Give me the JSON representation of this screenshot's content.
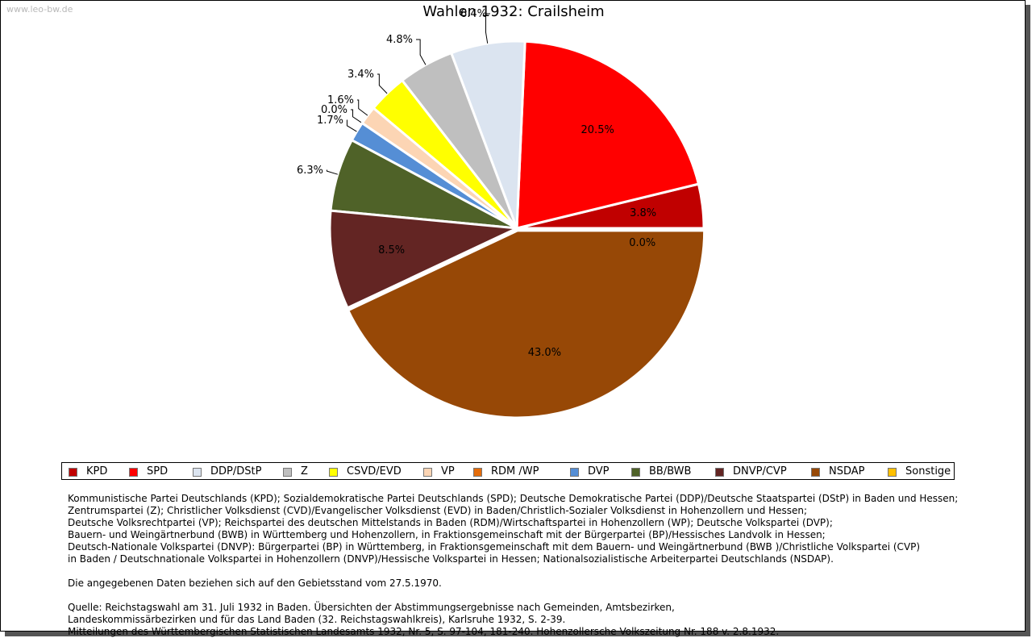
{
  "watermark": "www.leo-bw.de",
  "chart_data": {
    "type": "pie",
    "title": "Wahlen 1932: Crailsheim",
    "slices": [
      {
        "name": "KPD",
        "value": 3.8,
        "label": "3.8%",
        "color": "#c00000"
      },
      {
        "name": "SPD",
        "value": 20.5,
        "label": "20.5%",
        "color": "#ff0000"
      },
      {
        "name": "DDP/DStP",
        "value": 6.4,
        "label": "6.4%",
        "color": "#dbe4f0"
      },
      {
        "name": "Z",
        "value": 4.8,
        "label": "4.8%",
        "color": "#bfbfbf"
      },
      {
        "name": "CSVD/EVD",
        "value": 3.4,
        "label": "3.4%",
        "color": "#ffff00"
      },
      {
        "name": "VP",
        "value": 1.6,
        "label": "1.6%",
        "color": "#fcd5b4"
      },
      {
        "name": "RDM /WP",
        "value": 0.0,
        "label": "0.0%",
        "color": "#e46c0a"
      },
      {
        "name": "DVP",
        "value": 1.7,
        "label": "1.7%",
        "color": "#558ed5"
      },
      {
        "name": "BB/BWB",
        "value": 6.3,
        "label": "6.3%",
        "color": "#4f6228"
      },
      {
        "name": "DNVP/CVP",
        "value": 8.5,
        "label": "8.5%",
        "color": "#632523"
      },
      {
        "name": "NSDAP",
        "value": 43.0,
        "label": "43.0%",
        "color": "#974806"
      },
      {
        "name": "Sonstige",
        "value": 0.0,
        "label": "0.0%",
        "color": "#ffc000"
      }
    ],
    "legend_position": "bottom"
  },
  "notes": {
    "parties": [
      "Kommunistische Partei Deutschlands (KPD); Sozialdemokratische Partei Deutschlands (SPD); Deutsche Demokratische Partei (DDP)/Deutsche Staatspartei (DStP) in Baden und Hessen;",
      "Zentrumspartei (Z); Christlicher Volksdienst (CVD)/Evangelischer Volksdienst (EVD) in Baden/Christlich-Sozialer Volksdienst in Hohenzollern und Hessen;",
      "Deutsche Volksrechtpartei (VP); Reichspartei des deutschen Mittelstands in Baden (RDM)/Wirtschaftspartei in Hohenzollern (WP); Deutsche Volkspartei (DVP);",
      "Bauern- und Weingärtnerbund (BWB) in Württemberg und Hohenzollern, in Fraktionsgemeinschaft mit der Bürgerpartei (BP)/Hessisches Landvolk in Hessen;",
      "Deutsch-Nationale Volkspartei (DNVP): Bürgerpartei (BP) in Württemberg, in Fraktionsgemeinschaft mit dem Bauern- und Weingärtnerbund (BWB )/Christliche Volkspartei (CVP)",
      "in Baden / Deutschnationale Volkspartei in Hohenzollern (DNVP)/Hessische Volkspartei in Hessen; Nationalsozialistische Arbeiterpartei Deutschlands (NSDAP)."
    ],
    "gebietsstand": "Die angegebenen Daten beziehen sich auf den Gebietsstand vom 27.5.1970.",
    "quelle": [
      "Quelle: Reichstagswahl am 31. Juli 1932 in Baden. Übersichten der Abstimmungsergebnisse nach Gemeinden, Amtsbezirken,",
      "Landeskommissärbezirken und für das Land Baden (32. Reichstagswahlkreis), Karlsruhe 1932, S. 2-39.",
      "Mitteilungen des Württembergischen Statistischen Landesamts 1932, Nr. 5, S. 97-104, 181-240. Hohenzollersche Volkszeitung Nr. 188 v. 2.8.1932."
    ]
  }
}
